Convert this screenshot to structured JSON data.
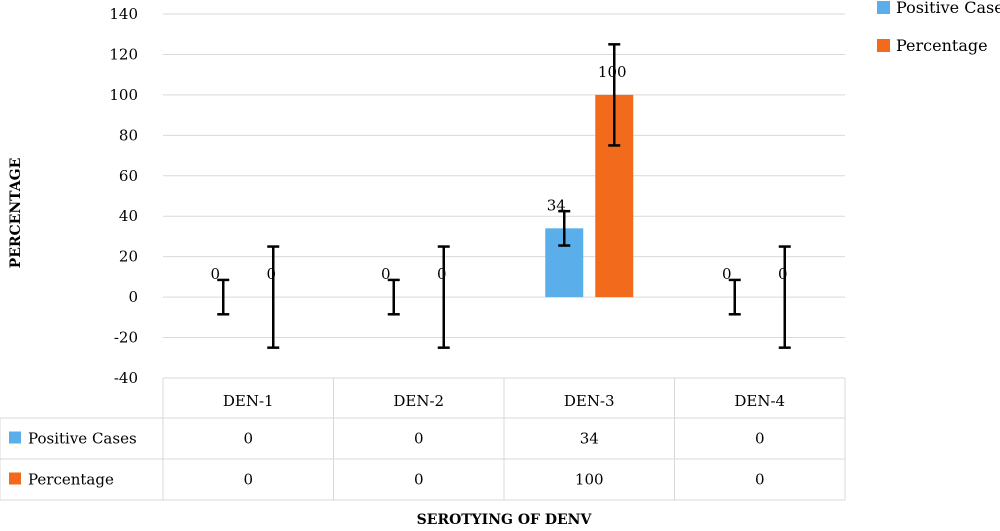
{
  "chart_data": {
    "type": "bar",
    "xlabel": "SEROTYING OF DENV",
    "ylabel": "PERCENTAGE",
    "ylim": [
      -40,
      140
    ],
    "yticks": [
      -40,
      -20,
      0,
      20,
      40,
      60,
      80,
      100,
      120,
      140
    ],
    "grid": true,
    "legend_position": "top-right",
    "categories": [
      "DEN-1",
      "DEN-2",
      "DEN-3",
      "DEN-4"
    ],
    "series": [
      {
        "name": "Positive Cases",
        "color": "#5aaeea",
        "values": [
          0,
          0,
          34,
          0
        ],
        "error": [
          8.5,
          8.5,
          8.5,
          8.5
        ],
        "labels": [
          "0",
          "0",
          "34",
          "0"
        ]
      },
      {
        "name": "Percentage",
        "color": "#f26a1b",
        "values": [
          0,
          0,
          100,
          0
        ],
        "error": [
          25,
          25,
          25,
          25
        ],
        "labels": [
          "0",
          "0",
          "100",
          "0"
        ]
      }
    ]
  }
}
